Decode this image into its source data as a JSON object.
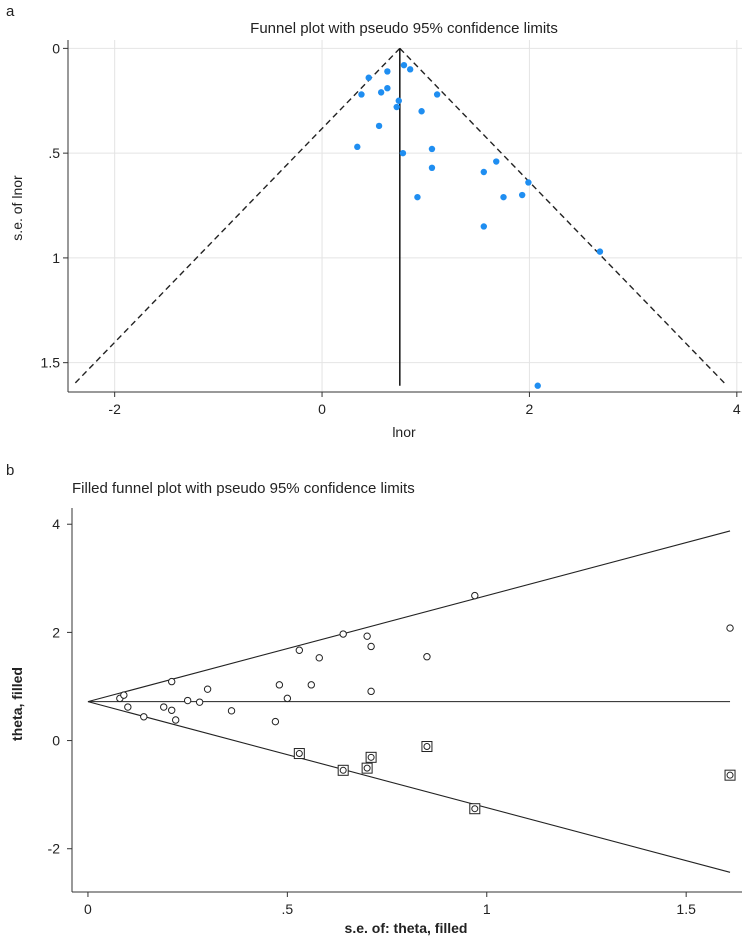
{
  "chart_data": [
    {
      "type": "scatter",
      "panel_label": "a",
      "title": "Funnel plot with pseudo 95% confidence limits",
      "xlabel": "lnor",
      "ylabel": "s.e. of lnor",
      "xlim": [
        -2.45,
        4.05
      ],
      "ylim": [
        1.64,
        -0.04
      ],
      "y_reversed": true,
      "xticks": [
        -2,
        0,
        2,
        4
      ],
      "xtick_labels": [
        "-2",
        "0",
        "2",
        "4"
      ],
      "yticks": [
        0,
        0.5,
        1,
        1.5
      ],
      "ytick_labels": [
        "0",
        ".5",
        "1",
        "1.5"
      ],
      "grid": true,
      "point_color": "#1f8ef1",
      "pooled_estimate": 0.75,
      "se_max": 1.61,
      "points": [
        {
          "x": 0.45,
          "y": 0.14
        },
        {
          "x": 0.38,
          "y": 0.22
        },
        {
          "x": 0.57,
          "y": 0.21
        },
        {
          "x": 0.63,
          "y": 0.19
        },
        {
          "x": 0.63,
          "y": 0.11
        },
        {
          "x": 0.79,
          "y": 0.08
        },
        {
          "x": 0.85,
          "y": 0.1
        },
        {
          "x": 1.11,
          "y": 0.22
        },
        {
          "x": 0.74,
          "y": 0.25
        },
        {
          "x": 0.72,
          "y": 0.28
        },
        {
          "x": 0.96,
          "y": 0.3
        },
        {
          "x": 0.55,
          "y": 0.37
        },
        {
          "x": 0.34,
          "y": 0.47
        },
        {
          "x": 0.78,
          "y": 0.5
        },
        {
          "x": 1.06,
          "y": 0.48
        },
        {
          "x": 1.06,
          "y": 0.57
        },
        {
          "x": 1.68,
          "y": 0.54
        },
        {
          "x": 1.56,
          "y": 0.59
        },
        {
          "x": 1.99,
          "y": 0.64
        },
        {
          "x": 1.93,
          "y": 0.7
        },
        {
          "x": 1.75,
          "y": 0.71
        },
        {
          "x": 0.92,
          "y": 0.71
        },
        {
          "x": 1.56,
          "y": 0.85
        },
        {
          "x": 2.68,
          "y": 0.97
        },
        {
          "x": 2.08,
          "y": 1.61
        }
      ]
    },
    {
      "type": "scatter",
      "panel_label": "b",
      "title": "Filled funnel plot with pseudo 95% confidence limits",
      "xlabel": "s.e. of: theta, filled",
      "ylabel": "theta, filled",
      "xlim": [
        -0.04,
        1.64
      ],
      "ylim": [
        -2.8,
        4.3
      ],
      "xticks": [
        0,
        0.5,
        1,
        1.5
      ],
      "xtick_labels": [
        "0",
        ".5",
        "1",
        "1.5"
      ],
      "yticks": [
        -2,
        0,
        2,
        4
      ],
      "ytick_labels": [
        "-2",
        "0",
        "2",
        "4"
      ],
      "grid": false,
      "pooled_estimate": 0.72,
      "se_max": 1.61,
      "observed_points": [
        {
          "x": 0.08,
          "y": 0.78
        },
        {
          "x": 0.09,
          "y": 0.84
        },
        {
          "x": 0.1,
          "y": 0.62
        },
        {
          "x": 0.14,
          "y": 0.44
        },
        {
          "x": 0.21,
          "y": 1.09
        },
        {
          "x": 0.19,
          "y": 0.62
        },
        {
          "x": 0.21,
          "y": 0.56
        },
        {
          "x": 0.22,
          "y": 0.38
        },
        {
          "x": 0.25,
          "y": 0.74
        },
        {
          "x": 0.28,
          "y": 0.71
        },
        {
          "x": 0.3,
          "y": 0.95
        },
        {
          "x": 0.36,
          "y": 0.55
        },
        {
          "x": 0.47,
          "y": 0.35
        },
        {
          "x": 0.48,
          "y": 1.03
        },
        {
          "x": 0.5,
          "y": 0.78
        },
        {
          "x": 0.53,
          "y": 1.67
        },
        {
          "x": 0.56,
          "y": 1.03
        },
        {
          "x": 0.58,
          "y": 1.53
        },
        {
          "x": 0.64,
          "y": 1.97
        },
        {
          "x": 0.7,
          "y": 1.93
        },
        {
          "x": 0.71,
          "y": 1.74
        },
        {
          "x": 0.71,
          "y": 0.91
        },
        {
          "x": 0.85,
          "y": 1.55
        },
        {
          "x": 0.97,
          "y": 2.68
        },
        {
          "x": 1.61,
          "y": 2.08
        }
      ],
      "filled_points": [
        {
          "x": 0.53,
          "y": -0.24
        },
        {
          "x": 0.64,
          "y": -0.55
        },
        {
          "x": 0.7,
          "y": -0.51
        },
        {
          "x": 0.71,
          "y": -0.31
        },
        {
          "x": 0.85,
          "y": -0.11
        },
        {
          "x": 0.97,
          "y": -1.26
        },
        {
          "x": 1.61,
          "y": -0.64
        }
      ]
    }
  ]
}
